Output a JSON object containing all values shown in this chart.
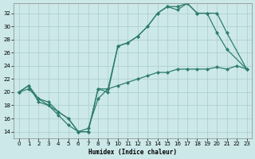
{
  "xlabel": "Humidex (Indice chaleur)",
  "bg_color": "#cce8e8",
  "grid_color": "#aacccc",
  "line_color": "#2e7d6e",
  "xlim": [
    -0.5,
    23.5
  ],
  "ylim": [
    13,
    33.5
  ],
  "yticks": [
    14,
    16,
    18,
    20,
    22,
    24,
    26,
    28,
    30,
    32
  ],
  "xticks": [
    0,
    1,
    2,
    3,
    4,
    5,
    6,
    7,
    8,
    9,
    10,
    11,
    12,
    13,
    14,
    15,
    16,
    17,
    18,
    19,
    20,
    21,
    22,
    23
  ],
  "line1_x": [
    0,
    1,
    2,
    3,
    4,
    5,
    6,
    7,
    8,
    9,
    10,
    11,
    12,
    13,
    14,
    15,
    16,
    17,
    18,
    19,
    20,
    21,
    23
  ],
  "line1_y": [
    20,
    21,
    19,
    18.5,
    17,
    16,
    14,
    14,
    20.5,
    20,
    27,
    27.5,
    28.5,
    30,
    32,
    33,
    33,
    33.5,
    32,
    32,
    29,
    26.5,
    23.5
  ],
  "line2_x": [
    0,
    1,
    2,
    3,
    4,
    5,
    6,
    7,
    8,
    9,
    10,
    11,
    12,
    13,
    14,
    15,
    16,
    17,
    18,
    19,
    20,
    21,
    23
  ],
  "line2_y": [
    20,
    21,
    18.5,
    18,
    17,
    16,
    14,
    14,
    20.5,
    20.5,
    27,
    27.5,
    28.5,
    30,
    32,
    33,
    32.5,
    33.5,
    32,
    32,
    32,
    29,
    23.5
  ],
  "line3_x": [
    0,
    1,
    2,
    3,
    4,
    5,
    6,
    7,
    8,
    9,
    10,
    11,
    12,
    13,
    14,
    15,
    16,
    17,
    18,
    19,
    20,
    21,
    22,
    23
  ],
  "line3_y": [
    20,
    20.5,
    19,
    18,
    16.5,
    15,
    14,
    14.5,
    19,
    20.5,
    21,
    21.5,
    22,
    22.5,
    23,
    23,
    23.5,
    23.5,
    23.5,
    23.5,
    23.8,
    23.5,
    24,
    23.5
  ],
  "markersize": 2.5
}
